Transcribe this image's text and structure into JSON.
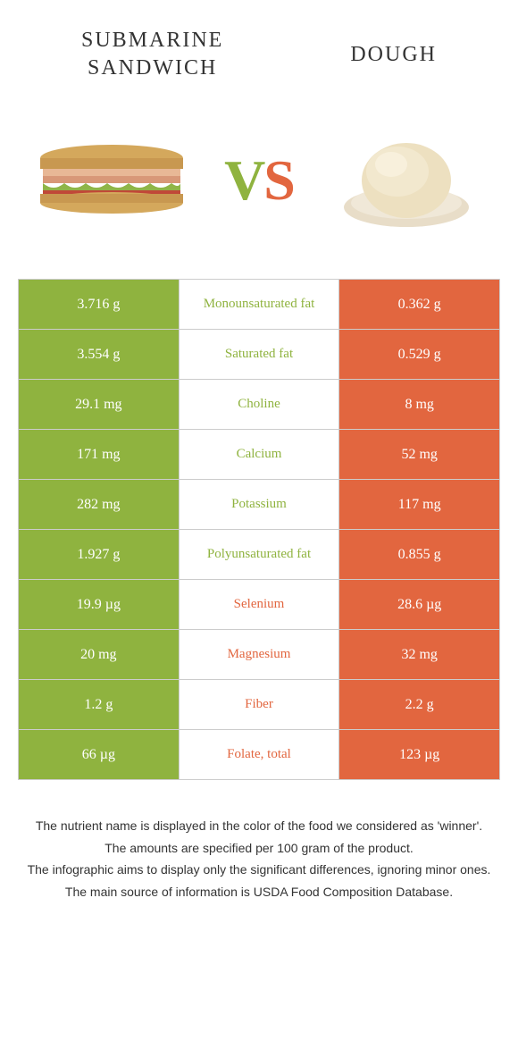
{
  "colors": {
    "green": "#8fb33f",
    "orange": "#e2663f",
    "border": "#cccccc",
    "text": "#333333",
    "white": "#ffffff"
  },
  "header": {
    "left_title_line1": "SUBMARINE",
    "left_title_line2": "SANDWICH",
    "right_title": "DOUGH",
    "vs_v": "V",
    "vs_s": "S"
  },
  "rows": [
    {
      "left": "3.716 g",
      "label": "Monounsaturated fat",
      "right": "0.362 g",
      "winner": "left"
    },
    {
      "left": "3.554 g",
      "label": "Saturated fat",
      "right": "0.529 g",
      "winner": "left"
    },
    {
      "left": "29.1 mg",
      "label": "Choline",
      "right": "8 mg",
      "winner": "left"
    },
    {
      "left": "171 mg",
      "label": "Calcium",
      "right": "52 mg",
      "winner": "left"
    },
    {
      "left": "282 mg",
      "label": "Potassium",
      "right": "117 mg",
      "winner": "left"
    },
    {
      "left": "1.927 g",
      "label": "Polyunsaturated fat",
      "right": "0.855 g",
      "winner": "left"
    },
    {
      "left": "19.9 µg",
      "label": "Selenium",
      "right": "28.6 µg",
      "winner": "right"
    },
    {
      "left": "20 mg",
      "label": "Magnesium",
      "right": "32 mg",
      "winner": "right"
    },
    {
      "left": "1.2 g",
      "label": "Fiber",
      "right": "2.2 g",
      "winner": "right"
    },
    {
      "left": "66 µg",
      "label": "Folate, total",
      "right": "123 µg",
      "winner": "right"
    }
  ],
  "footer": {
    "line1": "The nutrient name is displayed in the color of the food we considered as 'winner'.",
    "line2": "The amounts are specified per 100 gram of the product.",
    "line3": "The infographic aims to display only the significant differences, ignoring minor ones.",
    "line4": "The main source of information is USDA Food Composition Database."
  }
}
